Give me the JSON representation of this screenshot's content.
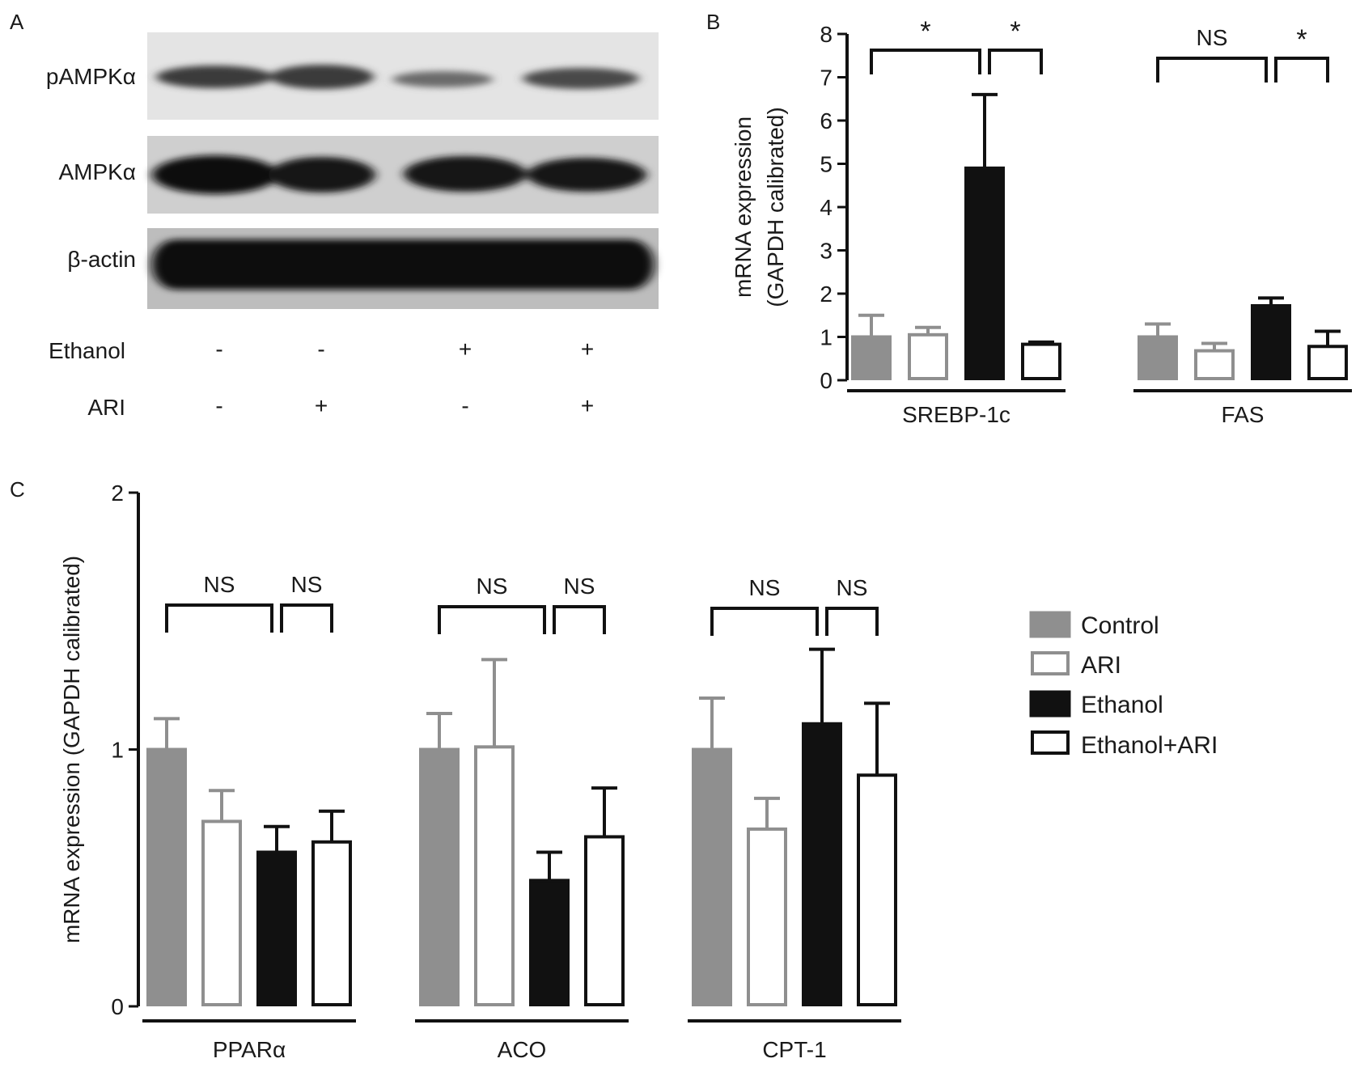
{
  "panel_labels": {
    "a": "A",
    "b": "B",
    "c": "C"
  },
  "colors": {
    "control": "#8f8f8f",
    "ari": "#8f8f8f",
    "ethanol": "#111111",
    "ethanol_ari": "#111111",
    "axis": "#111111"
  },
  "western_blot": {
    "bands": [
      "pAMPKα",
      "AMPKα",
      "β-actin"
    ],
    "rows": [
      {
        "label": "Ethanol",
        "marks": [
          "-",
          "-",
          "+",
          "+"
        ]
      },
      {
        "label": "ARI",
        "marks": [
          "-",
          "+",
          "-",
          "+"
        ]
      }
    ]
  },
  "legend": {
    "items": [
      {
        "key": "control",
        "label": "Control"
      },
      {
        "key": "ari",
        "label": "ARI"
      },
      {
        "key": "ethanol",
        "label": "Ethanol"
      },
      {
        "key": "ethanol_ari",
        "label": "Ethanol+ARI"
      }
    ]
  },
  "chart_data": [
    {
      "panel": "B",
      "type": "bar",
      "ylabel_lines": [
        "mRNA expression",
        "(GAPDH calibrated)"
      ],
      "ylim": [
        0,
        8
      ],
      "yticks": [
        "0",
        "1",
        "2",
        "3",
        "4",
        "5",
        "6",
        "7",
        "8"
      ],
      "series_names": [
        "Control",
        "ARI",
        "Ethanol",
        "Ethanol+ARI"
      ],
      "groups": [
        {
          "name": "SREBP-1c",
          "values": [
            1.0,
            1.05,
            4.9,
            0.83
          ],
          "errors": [
            0.5,
            0.17,
            1.7,
            0.05
          ],
          "brackets": [
            {
              "from": 0,
              "to": 2,
              "label": "*"
            },
            {
              "from": 2,
              "to": 3,
              "label": "*"
            }
          ]
        },
        {
          "name": "FAS",
          "values": [
            1.0,
            0.68,
            1.72,
            0.78
          ],
          "errors": [
            0.3,
            0.17,
            0.18,
            0.35
          ],
          "brackets": [
            {
              "from": 0,
              "to": 2,
              "label": "NS"
            },
            {
              "from": 2,
              "to": 3,
              "label": "*"
            }
          ]
        }
      ]
    },
    {
      "panel": "C",
      "type": "bar",
      "ylabel_lines": [
        "mRNA expression (GAPDH calibrated)"
      ],
      "ylim": [
        0,
        2
      ],
      "yticks": [
        "0",
        "1",
        "2"
      ],
      "series_names": [
        "Control",
        "ARI",
        "Ethanol",
        "Ethanol+ARI"
      ],
      "groups": [
        {
          "name": "PPARα",
          "values": [
            1.0,
            0.72,
            0.6,
            0.64
          ],
          "errors": [
            0.12,
            0.12,
            0.1,
            0.12
          ],
          "brackets": [
            {
              "from": 0,
              "to": 2,
              "label": "NS"
            },
            {
              "from": 2,
              "to": 3,
              "label": "NS"
            }
          ]
        },
        {
          "name": "ACO",
          "values": [
            1.0,
            1.01,
            0.49,
            0.66
          ],
          "errors": [
            0.14,
            0.34,
            0.11,
            0.19
          ],
          "brackets": [
            {
              "from": 0,
              "to": 2,
              "label": "NS"
            },
            {
              "from": 2,
              "to": 3,
              "label": "NS"
            }
          ]
        },
        {
          "name": "CPT-1",
          "values": [
            1.0,
            0.69,
            1.1,
            0.9
          ],
          "errors": [
            0.2,
            0.12,
            0.29,
            0.28
          ],
          "brackets": [
            {
              "from": 0,
              "to": 2,
              "label": "NS"
            },
            {
              "from": 2,
              "to": 3,
              "label": "NS"
            }
          ]
        }
      ]
    }
  ]
}
